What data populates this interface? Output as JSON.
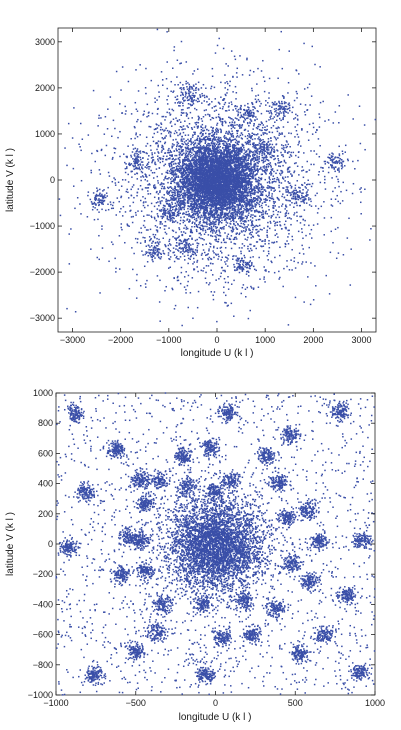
{
  "chart_data": [
    {
      "type": "scatter",
      "xlabel": "longitude U (k l )",
      "ylabel": "latitude V (k l )",
      "xlim": [
        -3300,
        3300
      ],
      "ylim": [
        -3300,
        3300
      ],
      "xticks": [
        -3000,
        -2000,
        -1000,
        0,
        1000,
        2000,
        3000
      ],
      "yticks": [
        -3000,
        -2000,
        -1000,
        0,
        1000,
        2000,
        3000
      ],
      "xtick_labels": [
        "−3000",
        "−2000",
        "−1000",
        "0",
        "1000",
        "2000",
        "3000"
      ],
      "ytick_labels": [
        "−3000",
        "−2000",
        "−1000",
        "0",
        "1000",
        "2000",
        "3000"
      ],
      "grid": false,
      "marker_color": "#3a4fa8",
      "point_count_approx": 9000,
      "distribution": {
        "core_center": [
          0,
          0
        ],
        "core_spread": 420,
        "halo_spread": 1100,
        "clusters": [
          {
            "x": 1300,
            "y": 1550,
            "spread": 110
          },
          {
            "x": -1300,
            "y": -1550,
            "spread": 110
          },
          {
            "x": 1650,
            "y": -350,
            "spread": 110
          },
          {
            "x": -1650,
            "y": 350,
            "spread": 110
          },
          {
            "x": 550,
            "y": -1850,
            "spread": 110
          },
          {
            "x": -550,
            "y": 1850,
            "spread": 110
          },
          {
            "x": -650,
            "y": -1450,
            "spread": 110
          },
          {
            "x": 650,
            "y": 1450,
            "spread": 110
          },
          {
            "x": 1000,
            "y": 700,
            "spread": 100
          },
          {
            "x": -1000,
            "y": -700,
            "spread": 100
          },
          {
            "x": 2450,
            "y": 400,
            "spread": 100
          },
          {
            "x": -2450,
            "y": -400,
            "spread": 100
          }
        ]
      }
    },
    {
      "type": "scatter",
      "xlabel": "longitude U (k l )",
      "ylabel": "latitude V (k l )",
      "xlim": [
        -1000,
        1000
      ],
      "ylim": [
        -1000,
        1000
      ],
      "xticks": [
        -1000,
        -500,
        0,
        500,
        1000
      ],
      "yticks": [
        -1000,
        -800,
        -600,
        -400,
        -200,
        0,
        200,
        400,
        600,
        800,
        1000
      ],
      "xtick_labels": [
        "−1000",
        "−500",
        "0",
        "500",
        "1000"
      ],
      "ytick_labels": [
        "−1000",
        "−800",
        "−600",
        "−400",
        "−200",
        "0",
        "200",
        "400",
        "600",
        "800",
        "1000"
      ],
      "grid": false,
      "marker_color": "#3a4fa8",
      "point_count_approx": 11000,
      "distribution": {
        "core_center": [
          0,
          0
        ],
        "core_spread": 150,
        "background": "uniform",
        "clusters": [
          {
            "x": -880,
            "y": 860,
            "spread": 28
          },
          {
            "x": 780,
            "y": 880,
            "spread": 28
          },
          {
            "x": 80,
            "y": 870,
            "spread": 28
          },
          {
            "x": -620,
            "y": 620,
            "spread": 28
          },
          {
            "x": 470,
            "y": 720,
            "spread": 28
          },
          {
            "x": -30,
            "y": 640,
            "spread": 28
          },
          {
            "x": -810,
            "y": 340,
            "spread": 28
          },
          {
            "x": -470,
            "y": 420,
            "spread": 30
          },
          {
            "x": -360,
            "y": 420,
            "spread": 30
          },
          {
            "x": -200,
            "y": 580,
            "spread": 28
          },
          {
            "x": -180,
            "y": 380,
            "spread": 30
          },
          {
            "x": 100,
            "y": 420,
            "spread": 30
          },
          {
            "x": 320,
            "y": 580,
            "spread": 30
          },
          {
            "x": 400,
            "y": 410,
            "spread": 30
          },
          {
            "x": -440,
            "y": 270,
            "spread": 28
          },
          {
            "x": -10,
            "y": 350,
            "spread": 28
          },
          {
            "x": -550,
            "y": 50,
            "spread": 30
          },
          {
            "x": -920,
            "y": -20,
            "spread": 28
          },
          {
            "x": -470,
            "y": 20,
            "spread": 28
          },
          {
            "x": 450,
            "y": 180,
            "spread": 30
          },
          {
            "x": 580,
            "y": 230,
            "spread": 30
          },
          {
            "x": 650,
            "y": 20,
            "spread": 28
          },
          {
            "x": 920,
            "y": 30,
            "spread": 28
          },
          {
            "x": -590,
            "y": -200,
            "spread": 30
          },
          {
            "x": -440,
            "y": -180,
            "spread": 28
          },
          {
            "x": 480,
            "y": -130,
            "spread": 28
          },
          {
            "x": -330,
            "y": -400,
            "spread": 30
          },
          {
            "x": -80,
            "y": -400,
            "spread": 30
          },
          {
            "x": 180,
            "y": -380,
            "spread": 30
          },
          {
            "x": 380,
            "y": -430,
            "spread": 30
          },
          {
            "x": 590,
            "y": -250,
            "spread": 30
          },
          {
            "x": 820,
            "y": -340,
            "spread": 28
          },
          {
            "x": -370,
            "y": -580,
            "spread": 30
          },
          {
            "x": 40,
            "y": -620,
            "spread": 28
          },
          {
            "x": 230,
            "y": -600,
            "spread": 28
          },
          {
            "x": -500,
            "y": -710,
            "spread": 28
          },
          {
            "x": 680,
            "y": -600,
            "spread": 28
          },
          {
            "x": -760,
            "y": -870,
            "spread": 28
          },
          {
            "x": 530,
            "y": -730,
            "spread": 28
          },
          {
            "x": 900,
            "y": -850,
            "spread": 28
          },
          {
            "x": -60,
            "y": -870,
            "spread": 28
          }
        ]
      }
    }
  ]
}
